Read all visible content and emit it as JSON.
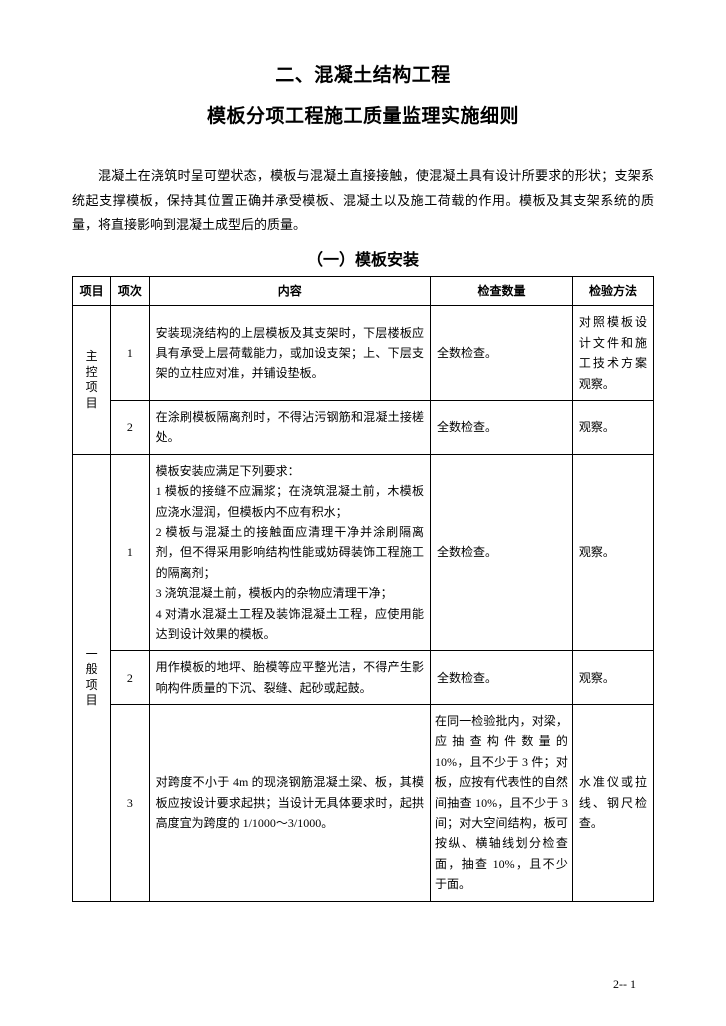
{
  "title_line1": "二、混凝土结构工程",
  "title_line2": "模板分项工程施工质量监理实施细则",
  "intro": "混凝土在浇筑时呈可塑状态，模板与混凝土直接接触，使混凝土具有设计所要求的形状；支架系统起支撑模板，保持其位置正确并承受模板、混凝土以及施工荷载的作用。模板及其支架系统的质量，将直接影响到混凝土成型后的质量。",
  "section_title": "（一）模板安装",
  "headers": {
    "project": "项目",
    "index": "项次",
    "content": "内容",
    "qty": "检查数量",
    "method": "检验方法"
  },
  "groups": [
    {
      "project_label": "主控项目",
      "rows": [
        {
          "index": "1",
          "content": "安装现浇结构的上层模板及其支架时，下层楼板应具有承受上层荷载能力，或加设支架；上、下层支架的立柱应对准，并铺设垫板。",
          "qty": "全数检查。",
          "method": "对照模板设计文件和施工技术方案观察。"
        },
        {
          "index": "2",
          "content": "在涂刷模板隔离剂时，不得沾污钢筋和混凝土接槎处。",
          "qty": "全数检查。",
          "method": "观察。"
        }
      ]
    },
    {
      "project_label": "一般项目",
      "rows": [
        {
          "index": "1",
          "content": "模板安装应满足下列要求：\n1 模板的接缝不应漏浆；在浇筑混凝土前，木模板应浇水湿润，但模板内不应有积水；\n2 模板与混凝土的接触面应清理干净并涂刷隔离剂，但不得采用影响结构性能或妨碍装饰工程施工的隔离剂；\n3 浇筑混凝土前，模板内的杂物应清理干净；\n4 对清水混凝土工程及装饰混凝土工程，应使用能达到设计效果的模板。",
          "qty": "全数检查。",
          "method": "观察。"
        },
        {
          "index": "2",
          "content": "用作模板的地坪、胎模等应平整光洁，不得产生影响构件质量的下沉、裂缝、起砂或起鼓。",
          "qty": "全数检查。",
          "method": "观察。"
        },
        {
          "index": "3",
          "content": "对跨度不小于 4m 的现浇钢筋混凝土梁、板，其模板应按设计要求起拱；当设计无具体要求时，起拱高度宜为跨度的 1/1000～3/1000。",
          "qty": "在同一检验批内，对梁，应抽查构件数量的 10%，且不少于 3 件；对板，应按有代表性的自然间抽查 10%，且不少于 3 间；对大空间结构，板可按纵、横轴线划分检查面，抽查 10%，且不少于面。",
          "method": "水准仪或拉线、钢尺检查。"
        }
      ]
    }
  ],
  "page_number": "2-- 1",
  "colors": {
    "text": "#000000",
    "background": "#ffffff",
    "border": "#000000"
  }
}
